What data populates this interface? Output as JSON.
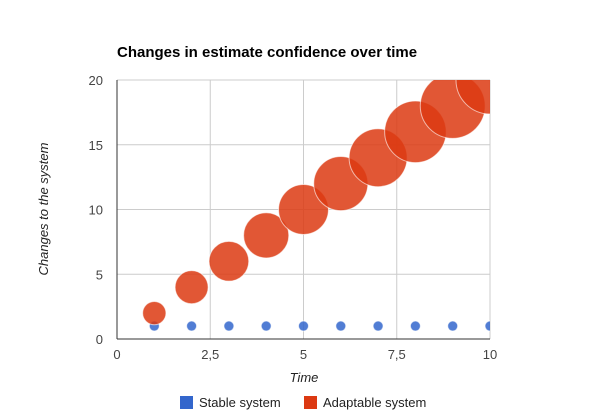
{
  "chart_data": {
    "type": "bubble",
    "title": "Changes in estimate confidence over time",
    "xlabel": "Time",
    "ylabel": "Changes to the system",
    "xlim": [
      0,
      10
    ],
    "ylim": [
      0,
      20
    ],
    "x_ticks": [
      {
        "value": 0,
        "label": "0"
      },
      {
        "value": 2.5,
        "label": "2,5"
      },
      {
        "value": 5,
        "label": "5"
      },
      {
        "value": 7.5,
        "label": "7,5"
      },
      {
        "value": 10,
        "label": "10"
      }
    ],
    "y_ticks": [
      {
        "value": 0,
        "label": "0"
      },
      {
        "value": 5,
        "label": "5"
      },
      {
        "value": 10,
        "label": "10"
      },
      {
        "value": 15,
        "label": "15"
      },
      {
        "value": 20,
        "label": "20"
      }
    ],
    "grid": true,
    "legend_position": "bottom",
    "series": [
      {
        "name": "Stable system",
        "color": "#3366cc",
        "points": [
          {
            "x": 1,
            "y": 1,
            "size": 1
          },
          {
            "x": 2,
            "y": 1,
            "size": 1
          },
          {
            "x": 3,
            "y": 1,
            "size": 1
          },
          {
            "x": 4,
            "y": 1,
            "size": 1
          },
          {
            "x": 5,
            "y": 1,
            "size": 1
          },
          {
            "x": 6,
            "y": 1,
            "size": 1
          },
          {
            "x": 7,
            "y": 1,
            "size": 1
          },
          {
            "x": 8,
            "y": 1,
            "size": 1
          },
          {
            "x": 9,
            "y": 1,
            "size": 1
          },
          {
            "x": 10,
            "y": 1,
            "size": 1
          }
        ]
      },
      {
        "name": "Adaptable system",
        "color": "#dc3912",
        "points": [
          {
            "x": 1,
            "y": 2,
            "size": 2
          },
          {
            "x": 2,
            "y": 4,
            "size": 4
          },
          {
            "x": 3,
            "y": 6,
            "size": 6
          },
          {
            "x": 4,
            "y": 8,
            "size": 8
          },
          {
            "x": 5,
            "y": 10,
            "size": 10
          },
          {
            "x": 6,
            "y": 12,
            "size": 12
          },
          {
            "x": 7,
            "y": 14,
            "size": 14
          },
          {
            "x": 8,
            "y": 16,
            "size": 16
          },
          {
            "x": 9,
            "y": 18,
            "size": 18
          },
          {
            "x": 10,
            "y": 20,
            "size": 20
          }
        ]
      }
    ]
  }
}
